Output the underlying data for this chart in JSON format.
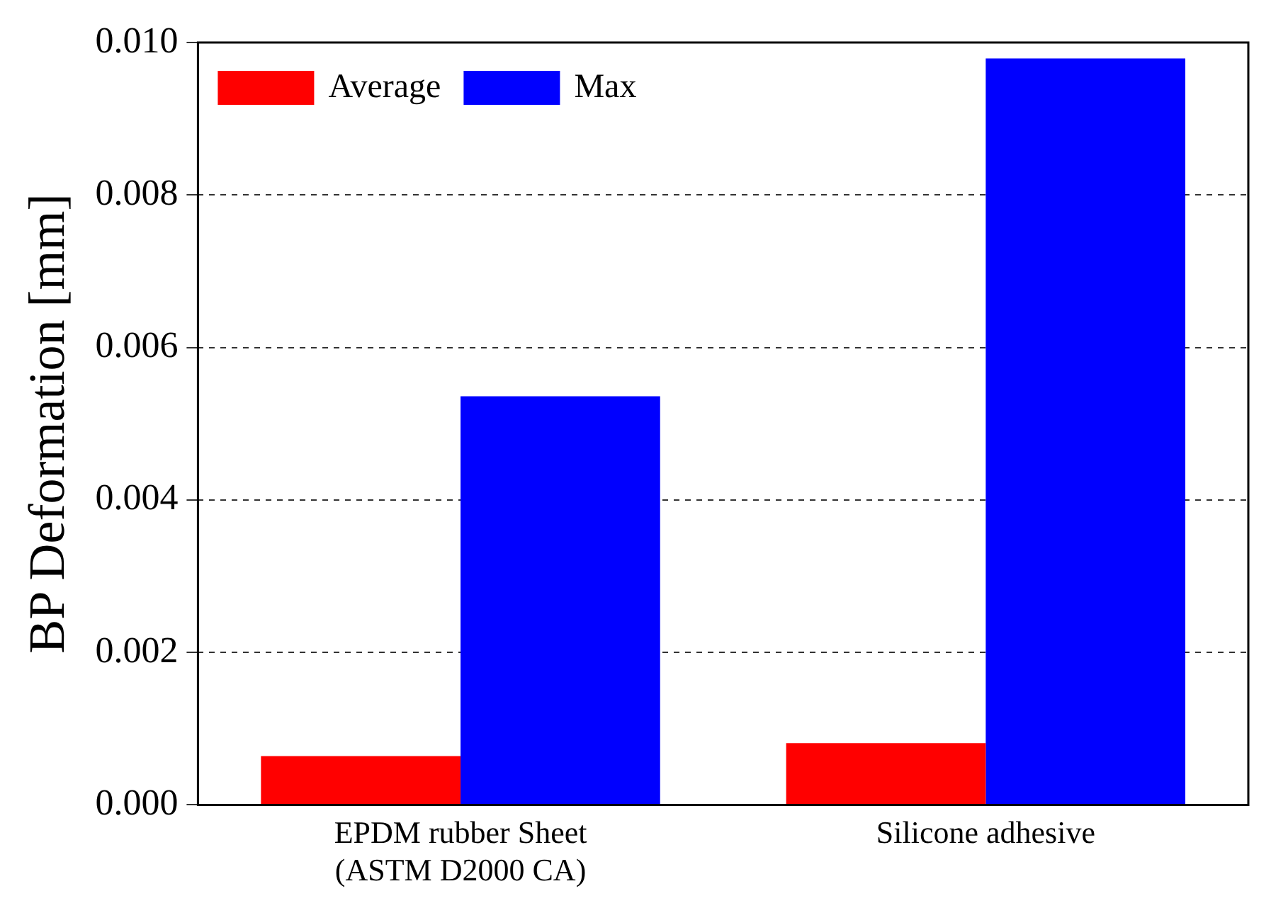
{
  "chart_data": {
    "type": "bar",
    "ylabel": "BP Deformation [mm]",
    "categories": [
      "EPDM rubber Sheet\n(ASTM D2000 CA)",
      "Silicone adhesive"
    ],
    "series": [
      {
        "name": "Average",
        "color": "#ff0000",
        "values": [
          0.00064,
          0.00081
        ]
      },
      {
        "name": "Max",
        "color": "#0000ff",
        "values": [
          0.00536,
          0.00979
        ]
      }
    ],
    "ylim": [
      0,
      0.01
    ],
    "yticks": [
      {
        "value": 0,
        "label": "0.000"
      },
      {
        "value": 0.002,
        "label": "0.002"
      },
      {
        "value": 0.004,
        "label": "0.004"
      },
      {
        "value": 0.006,
        "label": "0.006"
      },
      {
        "value": 0.008,
        "label": "0.008"
      },
      {
        "value": 0.01,
        "label": "0.010"
      }
    ],
    "grid": "y",
    "legend": "top left"
  }
}
